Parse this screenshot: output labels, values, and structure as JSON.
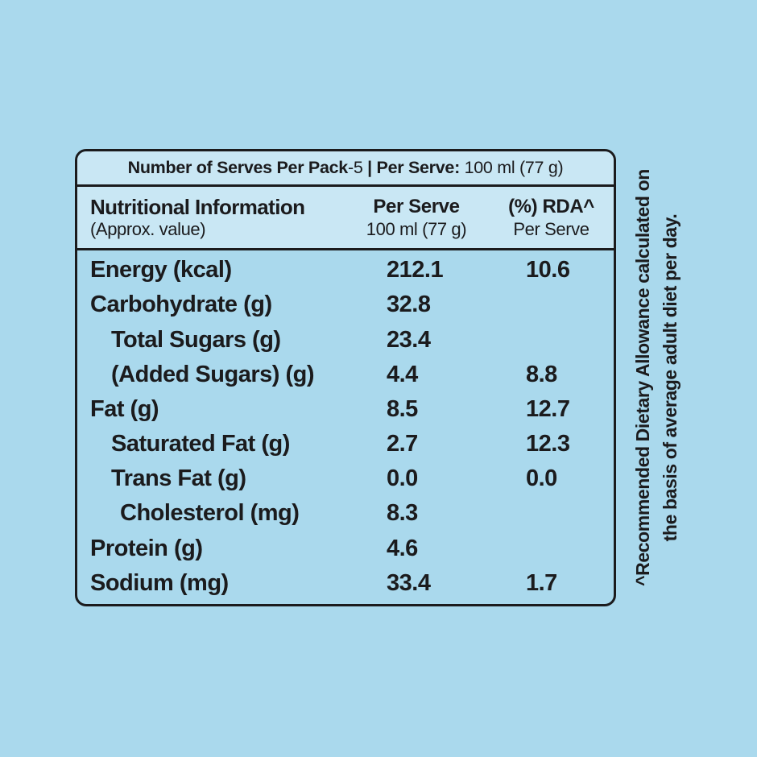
{
  "colors": {
    "page_bg": "#aad9ed",
    "band_bg": "#c9e7f4",
    "line": "#1b1b1d",
    "text": "#1b1b1d"
  },
  "serves_bar": {
    "part1_bold": "Number of Serves Per Pack",
    "part2": "-5",
    "part3_bold": " | Per Serve: ",
    "part4": "100 ml (77 g)"
  },
  "columns": {
    "col1": {
      "title": "Nutritional Information",
      "subtitle": "(Approx. value)"
    },
    "col2": {
      "title": "Per Serve",
      "subtitle": "100 ml (77 g)"
    },
    "col3": {
      "title": "(%) RDA^",
      "subtitle": "Per Serve"
    }
  },
  "rows": [
    {
      "label": "Energy (kcal)",
      "indent": 0,
      "per_serve": "212.1",
      "rda": "10.6"
    },
    {
      "label": "Carbohydrate (g)",
      "indent": 0,
      "per_serve": "32.8",
      "rda": ""
    },
    {
      "label": "Total Sugars (g)",
      "indent": 1,
      "per_serve": "23.4",
      "rda": ""
    },
    {
      "label": "(Added Sugars) (g)",
      "indent": 1,
      "per_serve": "4.4",
      "rda": "8.8"
    },
    {
      "label": "Fat (g)",
      "indent": 0,
      "per_serve": "8.5",
      "rda": "12.7"
    },
    {
      "label": "Saturated Fat (g)",
      "indent": 1,
      "per_serve": "2.7",
      "rda": "12.3"
    },
    {
      "label": "Trans Fat (g)",
      "indent": 1,
      "per_serve": "0.0",
      "rda": "0.0"
    },
    {
      "label": "Cholesterol (mg)",
      "indent": 2,
      "per_serve": "8.3",
      "rda": ""
    },
    {
      "label": "Protein (g)",
      "indent": 0,
      "per_serve": "4.6",
      "rda": ""
    },
    {
      "label": "Sodium (mg)",
      "indent": 0,
      "per_serve": "33.4",
      "rda": "1.7"
    }
  ],
  "footnote": {
    "line1": "^Recommended Dietary Allowance calculated on",
    "line2": "the basis of average adult diet per day."
  }
}
